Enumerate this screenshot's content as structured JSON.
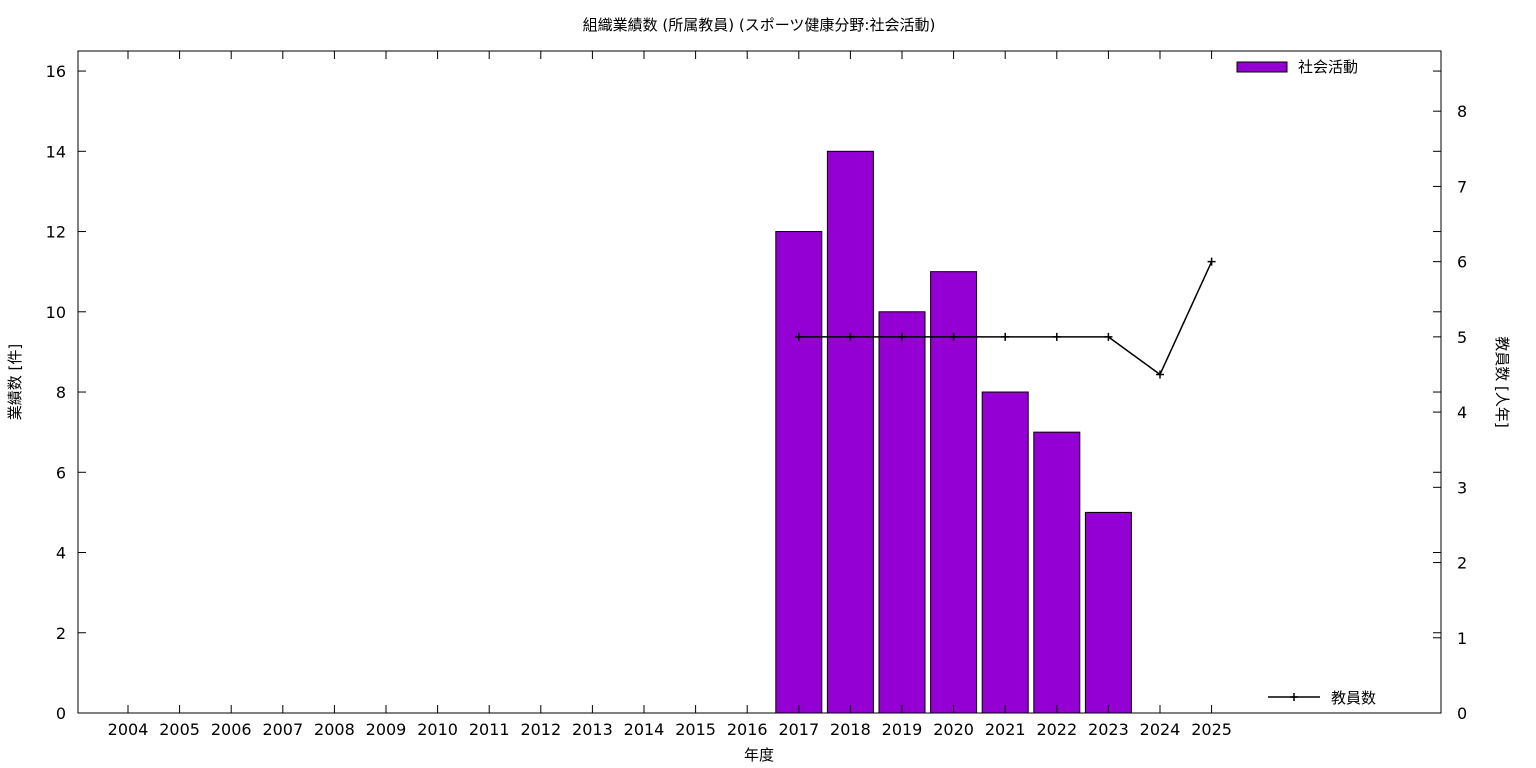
{
  "chart_data": {
    "type": "bar",
    "title": "組織業績数 (所属教員) (スポーツ健康分野:社会活動)",
    "xlabel": "年度",
    "ylabel": "業績数 [件]",
    "y2label": "教員数 [人年]",
    "categories": [
      "2004",
      "2005",
      "2006",
      "2007",
      "2008",
      "2009",
      "2010",
      "2011",
      "2012",
      "2013",
      "2014",
      "2015",
      "2016",
      "2017",
      "2018",
      "2019",
      "2020",
      "2021",
      "2022",
      "2023",
      "2024",
      "2025"
    ],
    "ylim": [
      0,
      16.5
    ],
    "y2lim": [
      0,
      8.8
    ],
    "yticks": [
      0,
      2,
      4,
      6,
      8,
      10,
      12,
      14,
      16
    ],
    "y2ticks": [
      0,
      1,
      2,
      3,
      4,
      5,
      6,
      7,
      8
    ],
    "grid": false,
    "series": [
      {
        "name": "社会活動",
        "kind": "bar",
        "axis": "left",
        "color": "#9400d3",
        "legend_position": "top-right",
        "values": [
          0,
          0,
          0,
          0,
          0,
          0,
          0,
          0,
          0,
          0,
          0,
          0,
          0,
          12,
          14,
          10,
          11,
          8,
          7,
          5,
          0,
          0
        ]
      },
      {
        "name": "教員数",
        "kind": "line",
        "axis": "right",
        "color": "#000000",
        "marker": "plus",
        "legend_position": "bottom-right",
        "values": [
          null,
          null,
          null,
          null,
          null,
          null,
          null,
          null,
          null,
          null,
          null,
          null,
          null,
          5,
          5,
          5,
          5,
          5,
          5,
          5,
          4.5,
          6
        ]
      }
    ]
  }
}
